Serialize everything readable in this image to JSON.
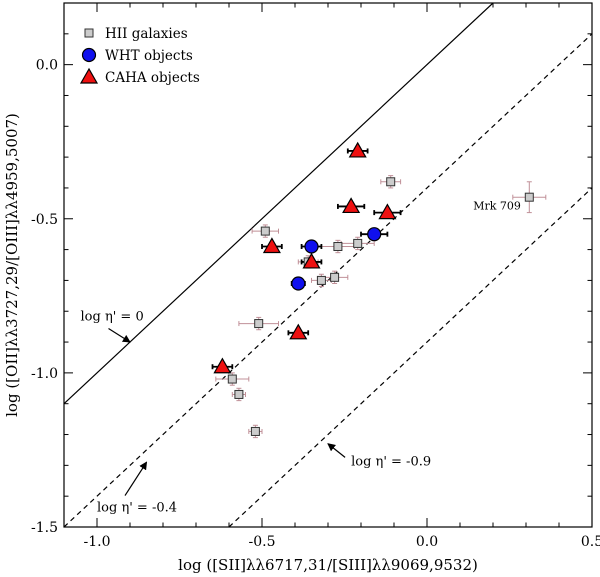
{
  "chart_data": {
    "type": "scatter",
    "xlabel": "log ([SII]λλ6717,31/[SIII]λλ9069,9532)",
    "ylabel": "log ([OII]λλ3727,29/[OIII]λλ4959,5007)",
    "xlim": [
      -1.1,
      0.5
    ],
    "ylim": [
      -1.5,
      0.2
    ],
    "x_ticks": [
      -1.0,
      -0.5,
      0.0,
      0.5
    ],
    "x_tick_labels": [
      "-1.0",
      "-0.5",
      "0.0",
      "0.5"
    ],
    "y_ticks": [
      0.0,
      -0.5,
      -1.0,
      -1.5
    ],
    "y_tick_labels": [
      "0.0",
      "-0.5",
      "-1.0",
      "-1.5"
    ],
    "legend": {
      "position": "top-left",
      "entries": [
        "HII galaxies",
        "WHT objects",
        "CAHA objects"
      ]
    },
    "colors": {
      "hii_fill": "#cccccc",
      "hii_edge": "#333333",
      "hii_error": "#c09098",
      "wht_fill": "#1010ee",
      "caha_fill": "#ee1010",
      "line": "#000000"
    },
    "lines": [
      {
        "name": "log η' = 0",
        "style": "solid",
        "slope": 1,
        "intercept": 0.0,
        "points": [
          [
            -1.1,
            -1.1
          ],
          [
            0.2,
            0.2
          ]
        ]
      },
      {
        "name": "log η' = -0.4",
        "style": "dashed",
        "slope": 1,
        "intercept": -0.4,
        "points": [
          [
            -1.1,
            -1.5
          ],
          [
            0.5,
            0.1
          ]
        ]
      },
      {
        "name": "log η' = -0.9",
        "style": "dashed",
        "slope": 1,
        "intercept": -0.9,
        "points": [
          [
            -0.6,
            -1.5
          ],
          [
            0.5,
            -0.4
          ]
        ]
      }
    ],
    "annotations": [
      {
        "text": "log η' = 0",
        "x": -1.05,
        "y": -0.83,
        "arrow_to": [
          -0.9,
          -0.9
        ]
      },
      {
        "text": "log η' = -0.4",
        "x": -1.0,
        "y": -1.45,
        "arrow_to": [
          -0.85,
          -1.29
        ]
      },
      {
        "text": "log η' = -0.9",
        "x": -0.23,
        "y": -1.3,
        "arrow_to": [
          -0.3,
          -1.23
        ]
      },
      {
        "text": "Mrk 709",
        "x": 0.14,
        "y": -0.47
      }
    ],
    "series": [
      {
        "name": "HII galaxies",
        "marker": "square",
        "points": [
          {
            "x": -0.11,
            "y": -0.38,
            "xerr": 0.03,
            "yerr": 0.02
          },
          {
            "x": -0.49,
            "y": -0.54,
            "xerr": 0.04,
            "yerr": 0.02
          },
          {
            "x": -0.27,
            "y": -0.59,
            "xerr": 0.05,
            "yerr": 0.02
          },
          {
            "x": -0.21,
            "y": -0.58,
            "xerr": 0.05,
            "yerr": 0.02
          },
          {
            "x": -0.36,
            "y": -0.64,
            "xerr": 0.03,
            "yerr": 0.02
          },
          {
            "x": -0.32,
            "y": -0.7,
            "xerr": 0.03,
            "yerr": 0.02
          },
          {
            "x": -0.28,
            "y": -0.69,
            "xerr": 0.04,
            "yerr": 0.02
          },
          {
            "x": -0.51,
            "y": -0.84,
            "xerr": 0.06,
            "yerr": 0.02
          },
          {
            "x": -0.59,
            "y": -1.02,
            "xerr": 0.05,
            "yerr": 0.02
          },
          {
            "x": -0.57,
            "y": -1.07,
            "xerr": 0.02,
            "yerr": 0.02
          },
          {
            "x": -0.52,
            "y": -1.19,
            "xerr": 0.02,
            "yerr": 0.02
          },
          {
            "x": 0.31,
            "y": -0.43,
            "xerr": 0.05,
            "yerr": 0.05
          }
        ]
      },
      {
        "name": "WHT objects",
        "marker": "circle",
        "points": [
          {
            "x": -0.16,
            "y": -0.55,
            "xerr": 0.04,
            "yerr": 0.01
          },
          {
            "x": -0.35,
            "y": -0.59,
            "xerr": 0.03,
            "yerr": 0.01
          },
          {
            "x": -0.39,
            "y": -0.71,
            "xerr": 0.02,
            "yerr": 0.01
          }
        ]
      },
      {
        "name": "CAHA objects",
        "marker": "triangle",
        "points": [
          {
            "x": -0.21,
            "y": -0.28,
            "xerr": 0.03,
            "yerr": 0.01
          },
          {
            "x": -0.23,
            "y": -0.46,
            "xerr": 0.04,
            "yerr": 0.01
          },
          {
            "x": -0.12,
            "y": -0.48,
            "xerr": 0.04,
            "yerr": 0.01
          },
          {
            "x": -0.47,
            "y": -0.59,
            "xerr": 0.03,
            "yerr": 0.01
          },
          {
            "x": -0.35,
            "y": -0.64,
            "xerr": 0.03,
            "yerr": 0.01
          },
          {
            "x": -0.39,
            "y": -0.87,
            "xerr": 0.03,
            "yerr": 0.01
          },
          {
            "x": -0.62,
            "y": -0.98,
            "xerr": 0.03,
            "yerr": 0.01
          }
        ]
      }
    ]
  }
}
